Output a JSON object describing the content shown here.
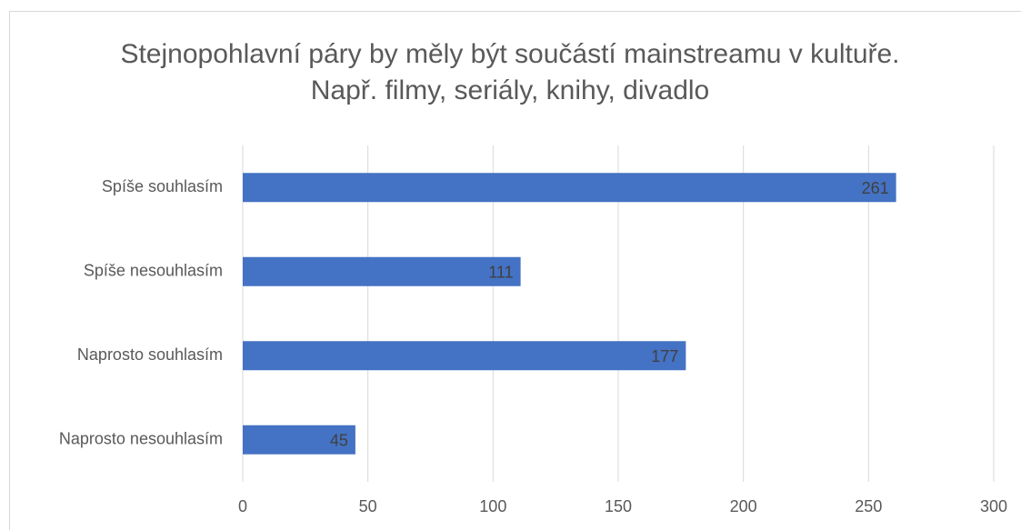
{
  "chart_data": {
    "type": "bar",
    "orientation": "horizontal",
    "title": "Stejnopohlavní páry by měly být součástí mainstreamu v kultuře. Např. filmy, seriály, knihy, divadlo",
    "categories": [
      "Spíše souhlasím",
      "Spíše nesouhlasím",
      "Naprosto souhlasím",
      "Naprosto nesouhlasím"
    ],
    "values": [
      261,
      111,
      177,
      45
    ],
    "color": "#4472c4",
    "xlim": [
      0,
      300
    ],
    "xticks": [
      0,
      50,
      100,
      150,
      200,
      250,
      300
    ],
    "grid": true
  }
}
